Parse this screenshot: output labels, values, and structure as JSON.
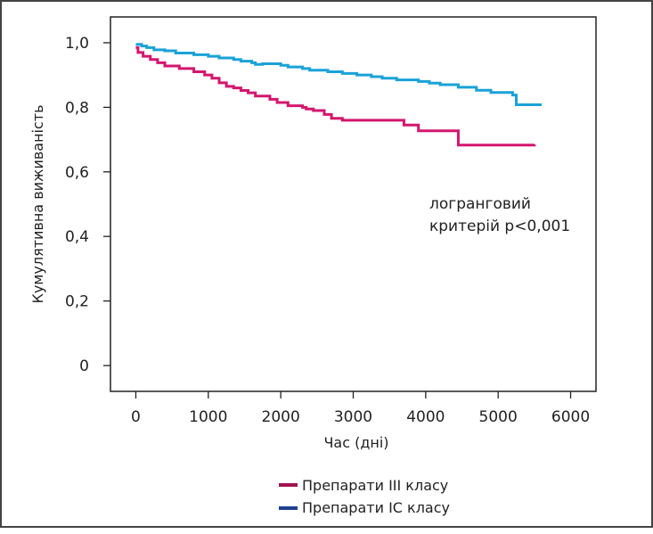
{
  "colors": {
    "class_iii": "#d4166e",
    "class_ic": "#1aa2d8",
    "legend_class_iii": "#a0144e",
    "legend_class_ic": "#1f3f8f"
  },
  "chart_data": {
    "type": "line",
    "step": true,
    "ylabel": "Кумулятивна виживаність",
    "xlabel": "Час (дні)",
    "xlim": [
      -350,
      6350
    ],
    "ylim": [
      -0.08,
      1.08
    ],
    "x_ticks": [
      0,
      1000,
      2000,
      3000,
      4000,
      5000,
      6000
    ],
    "x_tick_labels": [
      "0",
      "1000",
      "2000",
      "3000",
      "4000",
      "5000",
      "6000"
    ],
    "y_ticks": [
      0,
      0.2,
      0.4,
      0.6,
      0.8,
      1.0
    ],
    "y_tick_labels": [
      "0",
      "0,2",
      "0,4",
      "0,6",
      "0,8",
      "1,0"
    ],
    "annotation": [
      "логранговий",
      "критерій p<0,001"
    ],
    "legend_position": "bottom",
    "series": [
      {
        "name": "Препарати III класу",
        "color_key": "class_iii",
        "legend_color_key": "legend_class_iii",
        "points": [
          [
            0,
            0.985
          ],
          [
            30,
            0.97
          ],
          [
            100,
            0.958
          ],
          [
            200,
            0.948
          ],
          [
            300,
            0.938
          ],
          [
            400,
            0.928
          ],
          [
            600,
            0.92
          ],
          [
            800,
            0.91
          ],
          [
            950,
            0.9
          ],
          [
            1050,
            0.89
          ],
          [
            1150,
            0.876
          ],
          [
            1250,
            0.865
          ],
          [
            1350,
            0.86
          ],
          [
            1450,
            0.852
          ],
          [
            1550,
            0.845
          ],
          [
            1650,
            0.835
          ],
          [
            1850,
            0.825
          ],
          [
            1950,
            0.815
          ],
          [
            2100,
            0.805
          ],
          [
            2300,
            0.8
          ],
          [
            2350,
            0.795
          ],
          [
            2450,
            0.79
          ],
          [
            2600,
            0.778
          ],
          [
            2700,
            0.766
          ],
          [
            2850,
            0.76
          ],
          [
            3700,
            0.745
          ],
          [
            3900,
            0.727
          ],
          [
            4450,
            0.683
          ],
          [
            5500,
            0.685
          ]
        ]
      },
      {
        "name": "Препарати IC класу",
        "color_key": "class_ic",
        "legend_color_key": "legend_class_ic",
        "points": [
          [
            0,
            0.995
          ],
          [
            80,
            0.99
          ],
          [
            150,
            0.985
          ],
          [
            250,
            0.978
          ],
          [
            400,
            0.975
          ],
          [
            550,
            0.968
          ],
          [
            800,
            0.963
          ],
          [
            1000,
            0.958
          ],
          [
            1150,
            0.953
          ],
          [
            1350,
            0.948
          ],
          [
            1450,
            0.943
          ],
          [
            1600,
            0.938
          ],
          [
            1650,
            0.933
          ],
          [
            1750,
            0.935
          ],
          [
            2000,
            0.93
          ],
          [
            2100,
            0.925
          ],
          [
            2300,
            0.92
          ],
          [
            2400,
            0.915
          ],
          [
            2650,
            0.91
          ],
          [
            2850,
            0.905
          ],
          [
            3050,
            0.9
          ],
          [
            3250,
            0.895
          ],
          [
            3400,
            0.89
          ],
          [
            3600,
            0.885
          ],
          [
            3900,
            0.88
          ],
          [
            4050,
            0.875
          ],
          [
            4200,
            0.87
          ],
          [
            4450,
            0.862
          ],
          [
            4700,
            0.853
          ],
          [
            4900,
            0.846
          ],
          [
            5200,
            0.838
          ],
          [
            5250,
            0.808
          ],
          [
            5600,
            0.808
          ]
        ]
      }
    ]
  }
}
